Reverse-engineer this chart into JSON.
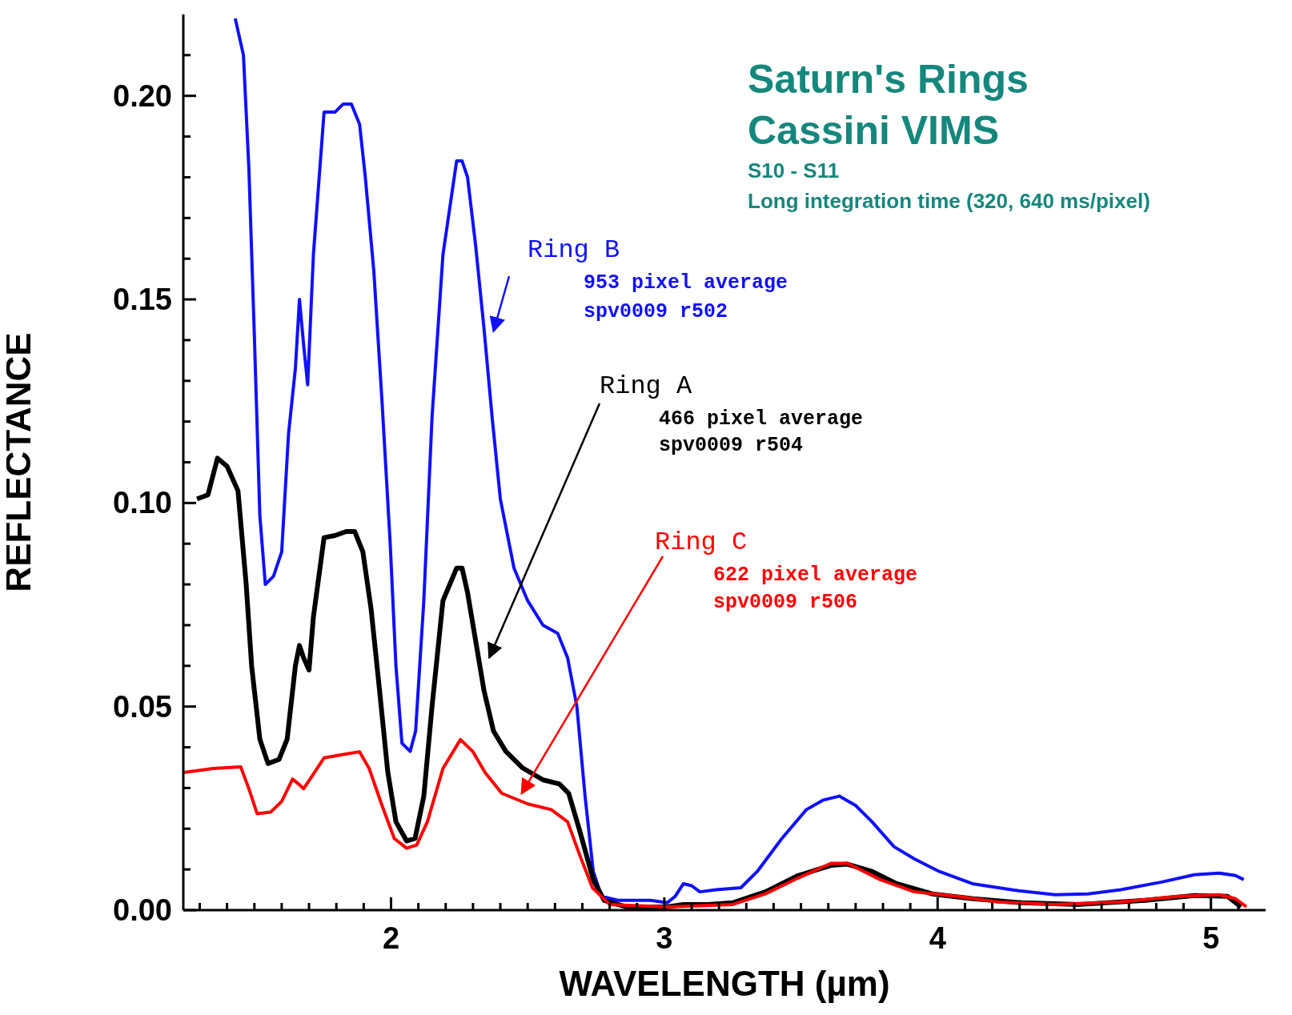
{
  "chart_data": {
    "type": "line",
    "title": "Saturn's Rings",
    "subtitle": "Cassini VIMS",
    "xlabel": "WAVELENGTH (µm)",
    "ylabel": "REFLECTANCE",
    "xlim": [
      1.24,
      5.2
    ],
    "ylim": [
      0,
      0.22
    ],
    "xticks": [
      {
        "value": 1.3,
        "label": null
      },
      {
        "value": 1.4,
        "label": null
      },
      {
        "value": 1.5,
        "label": null
      },
      {
        "value": 1.6,
        "label": null
      },
      {
        "value": 1.7,
        "label": null
      },
      {
        "value": 1.8,
        "label": null
      },
      {
        "value": 1.9,
        "label": null
      },
      2,
      {
        "value": 2.1,
        "label": null
      },
      {
        "value": 2.2,
        "label": null
      },
      {
        "value": 2.3,
        "label": null
      },
      {
        "value": 2.4,
        "label": null
      },
      {
        "value": 2.5,
        "label": null
      },
      {
        "value": 2.6,
        "label": null
      },
      {
        "value": 2.7,
        "label": null
      },
      {
        "value": 2.8,
        "label": null
      },
      {
        "value": 2.9,
        "label": null
      },
      3,
      {
        "value": 3.1,
        "label": null
      },
      {
        "value": 3.2,
        "label": null
      },
      {
        "value": 3.3,
        "label": null
      },
      {
        "value": 3.4,
        "label": null
      },
      {
        "value": 3.5,
        "label": null
      },
      {
        "value": 3.6,
        "label": null
      },
      {
        "value": 3.7,
        "label": null
      },
      {
        "value": 3.8,
        "label": null
      },
      {
        "value": 3.9,
        "label": null
      },
      4,
      {
        "value": 4.1,
        "label": null
      },
      {
        "value": 4.2,
        "label": null
      },
      {
        "value": 4.3,
        "label": null
      },
      {
        "value": 4.4,
        "label": null
      },
      {
        "value": 4.5,
        "label": null
      },
      {
        "value": 4.6,
        "label": null
      },
      {
        "value": 4.7,
        "label": null
      },
      {
        "value": 4.8,
        "label": null
      },
      {
        "value": 4.9,
        "label": null
      },
      5,
      {
        "value": 5.1,
        "label": null
      }
    ],
    "yticks": [
      {
        "value": 0,
        "label": "0.00"
      },
      {
        "value": 0.01,
        "label": null
      },
      {
        "value": 0.02,
        "label": null
      },
      {
        "value": 0.03,
        "label": null
      },
      {
        "value": 0.04,
        "label": null
      },
      {
        "value": 0.05,
        "label": "0.05"
      },
      {
        "value": 0.06,
        "label": null
      },
      {
        "value": 0.07,
        "label": null
      },
      {
        "value": 0.08,
        "label": null
      },
      {
        "value": 0.09,
        "label": null
      },
      {
        "value": 0.1,
        "label": "0.10"
      },
      {
        "value": 0.11,
        "label": null
      },
      {
        "value": 0.12,
        "label": null
      },
      {
        "value": 0.13,
        "label": null
      },
      {
        "value": 0.14,
        "label": null
      },
      {
        "value": 0.15,
        "label": "0.15"
      },
      {
        "value": 0.16,
        "label": null
      },
      {
        "value": 0.17,
        "label": null
      },
      {
        "value": 0.18,
        "label": null
      },
      {
        "value": 0.19,
        "label": null
      },
      {
        "value": 0.2,
        "label": "0.20"
      },
      {
        "value": 0.21,
        "label": null
      }
    ],
    "series": [
      {
        "name": "Ring B",
        "color": "#1010ff",
        "x": [
          1.43,
          1.46,
          1.48,
          1.5,
          1.52,
          1.54,
          1.57,
          1.6,
          1.625,
          1.65,
          1.665,
          1.68,
          1.695,
          1.716,
          1.755,
          1.795,
          1.825,
          1.855,
          1.885,
          1.906,
          1.937,
          1.967,
          1.997,
          2.018,
          2.04,
          2.07,
          2.09,
          2.12,
          2.15,
          2.19,
          2.24,
          2.26,
          2.28,
          2.31,
          2.34,
          2.37,
          2.4,
          2.45,
          2.5,
          2.556,
          2.61,
          2.646,
          2.68,
          2.71,
          2.74,
          2.77,
          2.83,
          2.95,
          3.01,
          3.04,
          3.07,
          3.1,
          3.13,
          3.19,
          3.28,
          3.34,
          3.43,
          3.52,
          3.58,
          3.64,
          3.7,
          3.76,
          3.84,
          3.915,
          4.006,
          4.127,
          4.28,
          4.43,
          4.55,
          4.67,
          4.82,
          4.94,
          5.03,
          5.09,
          5.12
        ],
        "values": [
          0.219,
          0.21,
          0.182,
          0.141,
          0.097,
          0.08,
          0.082,
          0.088,
          0.117,
          0.133,
          0.15,
          0.139,
          0.129,
          0.161,
          0.196,
          0.196,
          0.198,
          0.198,
          0.193,
          0.18,
          0.157,
          0.125,
          0.09,
          0.06,
          0.041,
          0.039,
          0.044,
          0.076,
          0.121,
          0.161,
          0.184,
          0.184,
          0.18,
          0.163,
          0.143,
          0.121,
          0.101,
          0.084,
          0.076,
          0.07,
          0.068,
          0.062,
          0.05,
          0.028,
          0.0095,
          0.0034,
          0.0024,
          0.0024,
          0.0018,
          0.0034,
          0.0065,
          0.006,
          0.0045,
          0.005,
          0.0055,
          0.0095,
          0.0176,
          0.0247,
          0.027,
          0.028,
          0.0257,
          0.0217,
          0.0156,
          0.0126,
          0.0095,
          0.0065,
          0.0049,
          0.0038,
          0.004,
          0.005,
          0.0069,
          0.0087,
          0.0091,
          0.0085,
          0.0075
        ]
      },
      {
        "name": "Ring A",
        "color": "#000000",
        "x": [
          1.29,
          1.33,
          1.365,
          1.4,
          1.44,
          1.47,
          1.49,
          1.52,
          1.55,
          1.59,
          1.62,
          1.65,
          1.665,
          1.68,
          1.7,
          1.716,
          1.755,
          1.795,
          1.836,
          1.867,
          1.897,
          1.927,
          1.958,
          1.988,
          2.018,
          2.057,
          2.088,
          2.12,
          2.15,
          2.19,
          2.24,
          2.26,
          2.28,
          2.31,
          2.34,
          2.375,
          2.42,
          2.48,
          2.556,
          2.616,
          2.65,
          2.69,
          2.74,
          2.78,
          2.86,
          3.01,
          3.07,
          3.16,
          3.25,
          3.37,
          3.49,
          3.61,
          3.67,
          3.76,
          3.85,
          3.98,
          4.13,
          4.31,
          4.52,
          4.76,
          4.94,
          5.06,
          5.11
        ],
        "values": [
          0.101,
          0.102,
          0.111,
          0.109,
          0.103,
          0.08,
          0.06,
          0.042,
          0.036,
          0.037,
          0.042,
          0.06,
          0.065,
          0.062,
          0.059,
          0.072,
          0.0915,
          0.092,
          0.093,
          0.093,
          0.088,
          0.074,
          0.054,
          0.034,
          0.0217,
          0.017,
          0.0176,
          0.028,
          0.05,
          0.076,
          0.084,
          0.084,
          0.078,
          0.066,
          0.054,
          0.044,
          0.039,
          0.035,
          0.032,
          0.031,
          0.0287,
          0.0196,
          0.0075,
          0.0024,
          0.0008,
          0.0008,
          0.0014,
          0.0014,
          0.0018,
          0.0045,
          0.0085,
          0.011,
          0.0113,
          0.0095,
          0.0065,
          0.004,
          0.0028,
          0.0018,
          0.0014,
          0.0024,
          0.0036,
          0.0034,
          0.0008
        ]
      },
      {
        "name": "Ring C",
        "color": "#ff0000",
        "x": [
          1.24,
          1.35,
          1.45,
          1.48,
          1.51,
          1.56,
          1.6,
          1.64,
          1.665,
          1.68,
          1.71,
          1.755,
          1.83,
          1.885,
          1.92,
          1.967,
          2.012,
          2.057,
          2.094,
          2.133,
          2.19,
          2.254,
          2.3,
          2.344,
          2.405,
          2.5,
          2.586,
          2.646,
          2.69,
          2.737,
          2.8,
          3.01,
          3.25,
          3.37,
          3.49,
          3.61,
          3.67,
          3.79,
          3.915,
          4.07,
          4.22,
          4.43,
          4.67,
          4.88,
          5.03,
          5.09,
          5.13
        ],
        "values": [
          0.0338,
          0.0348,
          0.0352,
          0.0298,
          0.0237,
          0.0241,
          0.0267,
          0.0322,
          0.0308,
          0.0298,
          0.0328,
          0.0374,
          0.0383,
          0.0389,
          0.0348,
          0.0257,
          0.0176,
          0.0152,
          0.016,
          0.0217,
          0.0348,
          0.0419,
          0.0389,
          0.0338,
          0.0287,
          0.0261,
          0.0247,
          0.0217,
          0.0136,
          0.0055,
          0.0014,
          0.0008,
          0.0014,
          0.004,
          0.0079,
          0.0115,
          0.0115,
          0.0075,
          0.0045,
          0.0034,
          0.002,
          0.0014,
          0.002,
          0.0034,
          0.0038,
          0.0028,
          0.0008
        ]
      }
    ],
    "annotations": [
      "S10 - S11",
      "Long integration time (320, 640 ms/pixel)",
      "953 pixel average",
      "spv0009 r502",
      "466 pixel average",
      "spv0009 r504",
      "622 pixel average",
      "spv0009 r506"
    ]
  }
}
